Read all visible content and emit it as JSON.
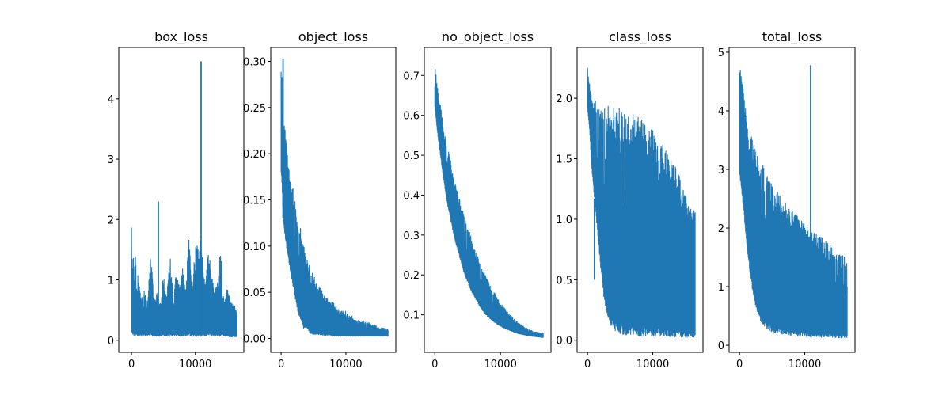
{
  "chart_data": [
    {
      "type": "line",
      "title": "box_loss",
      "color": "#1f77b4",
      "xlim": [
        -2000,
        17600
      ],
      "ylim": [
        -0.2,
        4.85
      ],
      "xticks": [
        0,
        10000
      ],
      "xtick_labels": [
        "0",
        "10000"
      ],
      "yticks": [
        0,
        1,
        2,
        3,
        4
      ],
      "ytick_labels": [
        "0",
        "1",
        "2",
        "3",
        "4"
      ],
      "series": [
        {
          "x": [
            0,
            100,
            200,
            300,
            400,
            600,
            800,
            1000,
            1500,
            2000,
            2500,
            3000,
            3500,
            4000,
            4500,
            5000,
            5500,
            6000,
            6500,
            7000,
            7500,
            8000,
            8500,
            9000,
            9500,
            10000,
            10500,
            10800,
            11000,
            11500,
            12000,
            12500,
            13000,
            13500,
            14000,
            14500,
            15000,
            15500,
            16000,
            16500
          ],
          "low": [
            0.1,
            0.08,
            0.08,
            0.07,
            0.07,
            0.07,
            0.07,
            0.07,
            0.07,
            0.07,
            0.07,
            0.06,
            0.06,
            0.06,
            0.06,
            0.06,
            0.06,
            0.06,
            0.06,
            0.06,
            0.06,
            0.06,
            0.06,
            0.06,
            0.06,
            0.06,
            0.06,
            0.06,
            0.06,
            0.06,
            0.06,
            0.06,
            0.06,
            0.06,
            0.06,
            0.06,
            0.06,
            0.05,
            0.05,
            0.05
          ],
          "high": [
            1.95,
            1.65,
            1.2,
            1.45,
            1.0,
            1.6,
            0.9,
            1.1,
            0.7,
            0.9,
            0.6,
            1.5,
            0.7,
            0.8,
            0.6,
            1.1,
            0.7,
            1.5,
            0.8,
            1.1,
            0.9,
            1.2,
            0.8,
            1.9,
            0.8,
            1.7,
            1.5,
            1.8,
            1.6,
            0.9,
            1.5,
            1.2,
            0.8,
            1.0,
            1.6,
            0.6,
            0.9,
            0.7,
            0.6,
            0.5
          ],
          "spikes": [
            [
              4200,
              2.3
            ],
            [
              10900,
              4.62
            ]
          ]
        }
      ]
    },
    {
      "type": "line",
      "title": "object_loss",
      "color": "#1f77b4",
      "xlim": [
        -1600,
        17700
      ],
      "ylim": [
        -0.015,
        0.315
      ],
      "xticks": [
        0,
        10000
      ],
      "xtick_labels": [
        "0",
        "10000"
      ],
      "yticks": [
        0,
        0.05,
        0.1,
        0.15,
        0.2,
        0.25,
        0.3
      ],
      "ytick_labels": [
        "0.00",
        "0.05",
        "0.10",
        "0.15",
        "0.20",
        "0.25",
        "0.30"
      ],
      "series": [
        {
          "x": [
            0,
            100,
            200,
            300,
            400,
            600,
            800,
            1000,
            1500,
            2000,
            2500,
            3000,
            3500,
            4000,
            4500,
            5000,
            5500,
            6000,
            6500,
            7000,
            7500,
            8000,
            8500,
            9000,
            9500,
            10000,
            10500,
            11000,
            11500,
            12000,
            12500,
            13000,
            13500,
            14000,
            14500,
            15000,
            15500,
            16000,
            16500
          ],
          "low": [
            0.18,
            0.17,
            0.15,
            0.13,
            0.12,
            0.11,
            0.1,
            0.09,
            0.07,
            0.05,
            0.03,
            0.02,
            0.01,
            0.01,
            0.005,
            0.004,
            0.004,
            0.003,
            0.003,
            0.003,
            0.003,
            0.002,
            0.002,
            0.002,
            0.002,
            0.002,
            0.002,
            0.002,
            0.002,
            0.002,
            0.002,
            0.002,
            0.002,
            0.002,
            0.002,
            0.002,
            0.002,
            0.002,
            0.002
          ],
          "high": [
            0.29,
            0.3,
            0.26,
            0.24,
            0.24,
            0.23,
            0.22,
            0.2,
            0.17,
            0.16,
            0.13,
            0.12,
            0.1,
            0.09,
            0.08,
            0.07,
            0.06,
            0.06,
            0.05,
            0.045,
            0.04,
            0.04,
            0.035,
            0.03,
            0.03,
            0.03,
            0.025,
            0.025,
            0.02,
            0.02,
            0.02,
            0.018,
            0.018,
            0.015,
            0.015,
            0.012,
            0.012,
            0.011,
            0.01
          ],
          "spikes": [
            [
              300,
              0.303
            ]
          ]
        }
      ]
    },
    {
      "type": "line",
      "title": "no_object_loss",
      "color": "#1f77b4",
      "xlim": [
        -1600,
        17700
      ],
      "ylim": [
        0.006,
        0.77
      ],
      "xticks": [
        0,
        10000
      ],
      "xtick_labels": [
        "0",
        "10000"
      ],
      "yticks": [
        0.1,
        0.2,
        0.3,
        0.4,
        0.5,
        0.6,
        0.7
      ],
      "ytick_labels": [
        "0.1",
        "0.2",
        "0.3",
        "0.4",
        "0.5",
        "0.6",
        "0.7"
      ],
      "series": [
        {
          "x": [
            0,
            500,
            1000,
            1500,
            2000,
            2500,
            3000,
            3500,
            4000,
            4500,
            5000,
            5500,
            6000,
            6500,
            7000,
            7500,
            8000,
            8500,
            9000,
            9500,
            10000,
            10500,
            11000,
            11500,
            12000,
            12500,
            13000,
            13500,
            14000,
            14500,
            15000,
            15500,
            16000,
            16500
          ],
          "low": [
            0.62,
            0.54,
            0.48,
            0.42,
            0.37,
            0.33,
            0.29,
            0.26,
            0.23,
            0.2,
            0.18,
            0.16,
            0.145,
            0.13,
            0.115,
            0.105,
            0.095,
            0.088,
            0.081,
            0.075,
            0.07,
            0.066,
            0.062,
            0.059,
            0.056,
            0.053,
            0.051,
            0.049,
            0.047,
            0.046,
            0.045,
            0.044,
            0.043,
            0.042
          ],
          "high": [
            0.73,
            0.66,
            0.61,
            0.56,
            0.52,
            0.48,
            0.44,
            0.41,
            0.38,
            0.35,
            0.32,
            0.3,
            0.27,
            0.25,
            0.23,
            0.21,
            0.19,
            0.175,
            0.16,
            0.145,
            0.13,
            0.12,
            0.11,
            0.1,
            0.092,
            0.085,
            0.078,
            0.072,
            0.067,
            0.063,
            0.06,
            0.058,
            0.056,
            0.055
          ],
          "spikes": []
        }
      ]
    },
    {
      "type": "line",
      "title": "class_loss",
      "color": "#1f77b4",
      "xlim": [
        -1600,
        17700
      ],
      "ylim": [
        -0.1,
        2.42
      ],
      "xticks": [
        0,
        10000
      ],
      "xtick_labels": [
        "0",
        "10000"
      ],
      "yticks": [
        0,
        0.5,
        1,
        1.5,
        2
      ],
      "ytick_labels": [
        "0.0",
        "0.5",
        "1.0",
        "1.5",
        "2.0"
      ],
      "series": [
        {
          "x": [
            0,
            300,
            600,
            1000,
            1500,
            2000,
            2500,
            3000,
            3500,
            4000,
            4500,
            5000,
            6000,
            7000,
            8000,
            9000,
            10000,
            11000,
            12000,
            13000,
            14000,
            14500,
            15000,
            15500,
            16000,
            16500
          ],
          "low": [
            1.9,
            1.75,
            1.45,
            1.2,
            0.9,
            0.6,
            0.35,
            0.2,
            0.12,
            0.08,
            0.06,
            0.05,
            0.04,
            0.04,
            0.03,
            0.03,
            0.03,
            0.03,
            0.03,
            0.02,
            0.02,
            0.02,
            0.02,
            0.02,
            0.02,
            0.02
          ],
          "high": [
            2.3,
            2.15,
            2.05,
            2.0,
            1.98,
            1.97,
            1.96,
            1.96,
            1.95,
            1.94,
            1.93,
            1.92,
            1.9,
            1.88,
            1.84,
            1.8,
            1.75,
            1.68,
            1.6,
            1.5,
            1.4,
            1.3,
            1.2,
            1.15,
            1.12,
            1.1
          ],
          "spikes": [
            [
              1050,
              0.5
            ]
          ]
        }
      ]
    },
    {
      "type": "line",
      "title": "total_loss",
      "color": "#1f77b4",
      "xlim": [
        -1600,
        17700
      ],
      "ylim": [
        -0.12,
        5.08
      ],
      "xticks": [
        0,
        10000
      ],
      "xtick_labels": [
        "0",
        "10000"
      ],
      "yticks": [
        0,
        1,
        2,
        3,
        4,
        5
      ],
      "ytick_labels": [
        "0",
        "1",
        "2",
        "3",
        "4",
        "5"
      ],
      "series": [
        {
          "x": [
            0,
            300,
            600,
            1000,
            1500,
            2000,
            2500,
            3000,
            3500,
            4000,
            4500,
            5000,
            5500,
            6000,
            6500,
            7000,
            7500,
            8000,
            9000,
            10000,
            10500,
            11000,
            11500,
            12000,
            13000,
            14000,
            15000,
            15500,
            16000,
            16500
          ],
          "low": [
            2.9,
            2.6,
            2.3,
            1.8,
            1.3,
            0.9,
            0.6,
            0.45,
            0.35,
            0.3,
            0.25,
            0.22,
            0.2,
            0.2,
            0.18,
            0.17,
            0.16,
            0.16,
            0.15,
            0.15,
            0.14,
            0.14,
            0.14,
            0.13,
            0.13,
            0.13,
            0.12,
            0.12,
            0.12,
            0.12
          ],
          "high": [
            4.9,
            4.6,
            4.5,
            4.0,
            3.7,
            3.5,
            3.4,
            3.2,
            3.1,
            3.0,
            2.9,
            2.8,
            2.7,
            2.6,
            2.5,
            2.45,
            2.4,
            2.35,
            2.2,
            2.1,
            2.05,
            2.0,
            1.95,
            1.9,
            1.8,
            1.7,
            1.6,
            1.55,
            1.55,
            1.4
          ],
          "spikes": [
            [
              10900,
              4.78
            ]
          ]
        }
      ]
    }
  ]
}
